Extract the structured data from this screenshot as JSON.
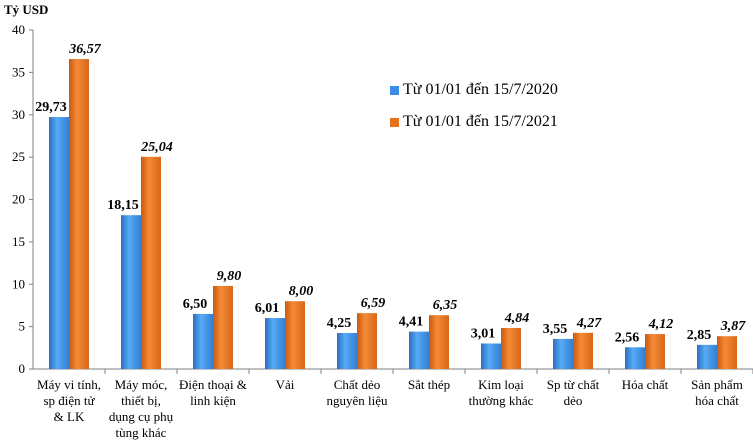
{
  "chart_data": {
    "type": "bar",
    "ylabel": "Tỷ USD",
    "ylim": [
      0,
      40
    ],
    "yticks": [
      0,
      5,
      10,
      15,
      20,
      25,
      30,
      35,
      40
    ],
    "grid": false,
    "legend_position": "top-right",
    "categories": [
      [
        "Máy vi tính,",
        "sp điện tử",
        "& LK"
      ],
      [
        "Máy móc,",
        "thiết bị,",
        "dụng cụ phụ",
        "tùng khác"
      ],
      [
        "Điện thoại &",
        "linh kiện"
      ],
      [
        "Vải"
      ],
      [
        "Chất dẻo",
        "nguyên liệu"
      ],
      [
        "Sắt thép"
      ],
      [
        "Kim loại",
        "thường khác"
      ],
      [
        "Sp từ chất",
        "dẻo"
      ],
      [
        "Hóa chất"
      ],
      [
        "Sản phẩm",
        "hóa chất"
      ]
    ],
    "series": [
      {
        "name": "Từ 01/01 đến 15/7/2020",
        "color": "#3a8ee6",
        "values": [
          29.73,
          18.15,
          6.5,
          6.01,
          4.25,
          4.41,
          3.01,
          3.55,
          2.56,
          2.85
        ],
        "labels": [
          "29,73",
          "18,15",
          "6,50",
          "6,01",
          "4,25",
          "4,41",
          "3,01",
          "3,55",
          "2,56",
          "2,85"
        ]
      },
      {
        "name": "Từ 01/01 đến 15/7/2021",
        "color": "#e8721c",
        "values": [
          36.57,
          25.04,
          9.8,
          8.0,
          6.59,
          6.35,
          4.84,
          4.27,
          4.12,
          3.87
        ],
        "labels": [
          "36,57",
          "25,04",
          "9,80",
          "8,00",
          "6,59",
          "6,35",
          "4,84",
          "4,27",
          "4,12",
          "3,87"
        ]
      }
    ]
  }
}
